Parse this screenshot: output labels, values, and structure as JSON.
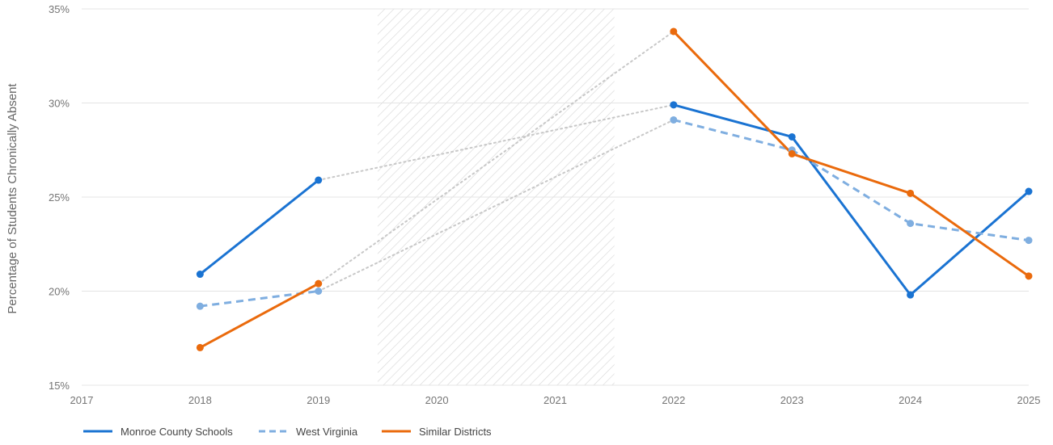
{
  "chart_data": {
    "type": "line",
    "title": "",
    "ylabel": "Percentage of Students Chronically Absent",
    "xlabel": "",
    "x": [
      2017,
      2018,
      2019,
      2020,
      2021,
      2022,
      2023,
      2024,
      2025
    ],
    "x_tick_labels": [
      "2017",
      "2018",
      "2019",
      "2020",
      "2021",
      "2022",
      "2023",
      "2024",
      "2025"
    ],
    "ylim": [
      15,
      35
    ],
    "y_ticks": [
      15,
      20,
      25,
      30,
      35
    ],
    "y_tick_labels": [
      "15%",
      "20%",
      "25%",
      "30%",
      "35%"
    ],
    "grid": "horizontal",
    "shaded_region": {
      "from": 2019.5,
      "to": 2021.5,
      "pattern": "diagonal-hatch"
    },
    "legend_position": "bottom-left",
    "series": [
      {
        "name": "Monroe County Schools",
        "color": "#1a73d2",
        "style": "solid",
        "points": [
          [
            2018,
            20.9
          ],
          [
            2019,
            25.9
          ],
          [
            2022,
            29.9
          ],
          [
            2023,
            28.2
          ],
          [
            2024,
            19.8
          ],
          [
            2025,
            25.3
          ]
        ]
      },
      {
        "name": "West Virginia",
        "color": "#7faee0",
        "style": "dashed",
        "points": [
          [
            2018,
            19.2
          ],
          [
            2019,
            20.0
          ],
          [
            2022,
            29.1
          ],
          [
            2023,
            27.5
          ],
          [
            2024,
            23.6
          ],
          [
            2025,
            22.7
          ]
        ]
      },
      {
        "name": "Similar Districts",
        "color": "#ea6a0c",
        "style": "solid",
        "points": [
          [
            2018,
            17.0
          ],
          [
            2019,
            20.4
          ],
          [
            2022,
            33.8
          ],
          [
            2023,
            27.3
          ],
          [
            2024,
            25.2
          ],
          [
            2025,
            20.8
          ]
        ]
      }
    ],
    "gap_connector_color": "#c8c8c8"
  }
}
